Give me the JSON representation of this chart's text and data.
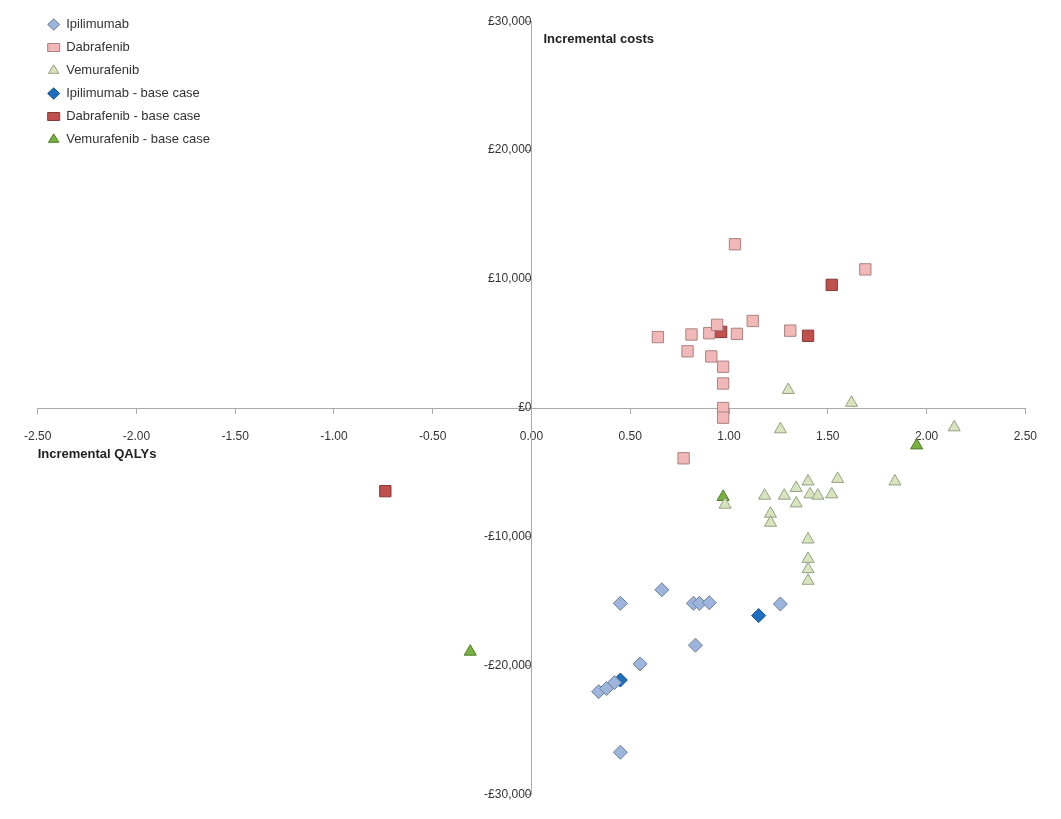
{
  "chart_data": {
    "type": "scatter",
    "xlabel": "Incremental QALYs",
    "ylabel": "Incremental costs",
    "xlim": [
      -2.5,
      2.5
    ],
    "ylim": [
      -30000,
      30000
    ],
    "xticks": [
      {
        "value": -2.5,
        "label": "-2.50"
      },
      {
        "value": -2,
        "label": "-2.00"
      },
      {
        "value": -1.5,
        "label": "-1.50"
      },
      {
        "value": -1,
        "label": "-1.00"
      },
      {
        "value": -0.5,
        "label": "-0.50"
      },
      {
        "value": 0,
        "label": "0.00"
      },
      {
        "value": 0.5,
        "label": "0.50"
      },
      {
        "value": 1,
        "label": "1.00"
      },
      {
        "value": 1.5,
        "label": "1.50"
      },
      {
        "value": 2,
        "label": "2.00"
      },
      {
        "value": 2.5,
        "label": "2.50"
      }
    ],
    "yticks": [
      {
        "value": -30000,
        "label": "-£30,000"
      },
      {
        "value": -20000,
        "label": "-£20,000"
      },
      {
        "value": -10000,
        "label": "-£10,000"
      },
      {
        "value": 0,
        "label": "£0"
      },
      {
        "value": 10000,
        "label": "£10,000"
      },
      {
        "value": 20000,
        "label": "£20,000"
      },
      {
        "value": 30000,
        "label": "£30,000"
      }
    ],
    "grid": false,
    "legend": "top left",
    "series": [
      {
        "name": "Ipilimumab",
        "color": "#9db5dc",
        "marker": "diamond",
        "x": [
          0.45,
          0.66,
          0.82,
          0.85,
          0.9,
          0.83,
          0.55,
          0.45,
          1.26,
          0.34,
          0.38,
          0.42
        ],
        "values": [
          -15150,
          -14100,
          -15150,
          -15150,
          -15100,
          -18400,
          -19850,
          -26700,
          -15200,
          -22000,
          -21750,
          -21300
        ]
      },
      {
        "name": "Dabrafenib",
        "color": "#f2b8b8",
        "marker": "square",
        "x": [
          1.03,
          1.69,
          0.64,
          0.81,
          0.79,
          0.9,
          0.91,
          1.04,
          1.12,
          1.31,
          0.94,
          0.97,
          0.97,
          0.97,
          0.97,
          0.77
        ],
        "values": [
          12700,
          10750,
          5500,
          5700,
          4400,
          5800,
          4000,
          5750,
          6750,
          6000,
          6450,
          3200,
          1900,
          0,
          -750,
          -3900
        ]
      },
      {
        "name": "Vemurafenib",
        "color": "#d7e4bd",
        "marker": "triangle",
        "x": [
          1.3,
          1.62,
          1.26,
          2.14,
          1.84,
          1.55,
          1.52,
          1.18,
          1.28,
          1.34,
          1.4,
          1.41,
          1.45,
          1.34,
          1.21,
          1.21,
          1.4,
          1.4,
          1.4,
          1.4,
          0.98
        ],
        "values": [
          1400,
          400,
          -1650,
          -1500,
          -5700,
          -5500,
          -6700,
          -6800,
          -6800,
          -6200,
          -5700,
          -6700,
          -6800,
          -7400,
          -8200,
          -8900,
          -10200,
          -11700,
          -12500,
          -13400,
          -7500
        ]
      },
      {
        "name": "Ipilimumab - base case",
        "color": "#1f6fc0",
        "marker": "diamond",
        "x": [
          0.45,
          1.15
        ],
        "values": [
          -21100,
          -16100
        ]
      },
      {
        "name": "Dabrafenib - base case",
        "color": "#c0504d",
        "marker": "square",
        "x": [
          1.52,
          1.4,
          0.96,
          -0.74
        ],
        "values": [
          9550,
          5600,
          5900,
          -6450
        ]
      },
      {
        "name": "Vemurafenib - base case",
        "color": "#77b140",
        "marker": "triangle",
        "x": [
          0.97,
          1.95,
          -0.31
        ],
        "values": [
          -6900,
          -2900,
          -18900
        ]
      }
    ]
  }
}
